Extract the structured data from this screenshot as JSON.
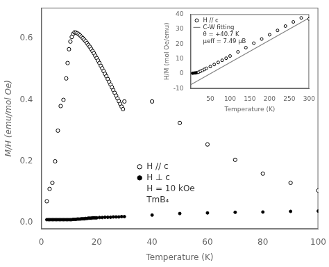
{
  "chart_data": [
    {
      "type": "scatter",
      "xlabel": "Temperature (K)",
      "ylabel": "M/H (emu/mol Oe)",
      "xlim": [
        0,
        100
      ],
      "ylim": [
        -0.02,
        0.7
      ],
      "xticks": [
        0,
        20,
        40,
        60,
        80,
        100
      ],
      "yticks": [
        {
          "value": 0,
          "label": "0.0"
        },
        0.2,
        0.4,
        0.6
      ],
      "grid": false,
      "legend": "lower center",
      "series": [
        {
          "name": "H // c",
          "color": "black",
          "marker": "circle_open",
          "x": [
            2,
            3,
            4,
            5,
            6,
            7,
            8,
            9.0,
            9.5,
            10.0,
            10.5,
            11.0,
            11.5,
            12.0,
            12.5,
            13.0,
            13.5,
            14.0,
            14.5,
            15.0,
            15.5,
            16.0,
            16.5,
            17.0,
            17.5,
            18.0,
            18.5,
            19.0,
            19.5,
            20.0,
            20.5,
            21.0,
            21.5,
            22.0,
            22.5,
            23.0,
            23.5,
            24.0,
            24.5,
            25.0,
            25.5,
            26.0,
            26.5,
            27.0,
            27.5,
            28.0,
            28.5,
            29.0,
            29.5,
            30.0,
            40,
            50,
            60,
            70,
            80,
            90,
            100
          ],
          "values": [
            0.07,
            0.11,
            0.13,
            0.2,
            0.3,
            0.38,
            0.4,
            0.47,
            0.52,
            0.565,
            0.59,
            0.605,
            0.615,
            0.62,
            0.619,
            0.617,
            0.614,
            0.61,
            0.606,
            0.601,
            0.596,
            0.591,
            0.585,
            0.579,
            0.573,
            0.566,
            0.559,
            0.552,
            0.544,
            0.536,
            0.528,
            0.52,
            0.511,
            0.503,
            0.494,
            0.485,
            0.477,
            0.468,
            0.459,
            0.45,
            0.441,
            0.432,
            0.423,
            0.414,
            0.405,
            0.396,
            0.387,
            0.378,
            0.37,
            0.395,
            0.395,
            0.325,
            0.255,
            0.205,
            0.16,
            0.13,
            0.105
          ]
        },
        {
          "name": "H ⊥ c",
          "color": "black",
          "marker": "circle",
          "x": [
            2,
            2.5,
            3,
            3.5,
            4,
            4.5,
            5,
            5.5,
            6,
            6.5,
            7,
            7.5,
            8,
            8.5,
            9,
            9.5,
            10,
            10.5,
            11,
            11.5,
            12,
            12.5,
            13,
            13.5,
            14,
            14.5,
            15,
            15.5,
            16,
            16.5,
            17,
            17.5,
            18,
            18.5,
            19,
            19.5,
            20,
            21,
            22,
            23,
            24,
            25,
            26,
            27,
            28,
            29,
            30,
            40,
            50,
            60,
            70,
            80,
            90,
            100
          ],
          "values": [
            0.01,
            0.01,
            0.01,
            0.01,
            0.01,
            0.01,
            0.01,
            0.01,
            0.01,
            0.01,
            0.01,
            0.01,
            0.01,
            0.01,
            0.01,
            0.01,
            0.01,
            0.01,
            0.01,
            0.011,
            0.011,
            0.011,
            0.012,
            0.012,
            0.012,
            0.013,
            0.013,
            0.013,
            0.014,
            0.014,
            0.015,
            0.015,
            0.015,
            0.016,
            0.016,
            0.016,
            0.016,
            0.017,
            0.017,
            0.018,
            0.018,
            0.018,
            0.019,
            0.019,
            0.019,
            0.02,
            0.02,
            0.025,
            0.03,
            0.032,
            0.034,
            0.035,
            0.037,
            0.038
          ]
        }
      ],
      "annotations": [
        "H = 10 kOe",
        "TmB₄"
      ]
    },
    {
      "type": "scatter",
      "xlabel": "Temperature (K)",
      "ylabel": "H/M (mol Oe/emu)",
      "xlim": [
        0,
        300
      ],
      "ylim": [
        -10,
        40
      ],
      "xticks": [
        50,
        100,
        150,
        200,
        250,
        300
      ],
      "yticks": [
        -10,
        0,
        10,
        20,
        30,
        40
      ],
      "grid": false,
      "legend": "upper left",
      "series": [
        {
          "name": "H // c",
          "color": "black",
          "marker": "circle_open",
          "x": [
            20,
            25,
            30,
            35,
            40,
            50,
            60,
            70,
            80,
            90,
            100,
            120,
            140,
            160,
            180,
            200,
            220,
            240,
            260,
            280,
            300
          ],
          "values": [
            1.0,
            1.6,
            2.2,
            2.9,
            3.6,
            4.8,
            6.2,
            7.6,
            9.0,
            10.4,
            11.9,
            14.7,
            17.5,
            20.5,
            23.3,
            26.2,
            29.1,
            32.0,
            34.8,
            37.5,
            36.8
          ]
        },
        {
          "color": "black",
          "marker": "circle",
          "x": [
            5,
            8,
            10,
            12,
            14,
            16
          ],
          "values": [
            0.3,
            0.4,
            0.5,
            0.5,
            0.6,
            0.7
          ]
        },
        {
          "name": "C-W fitting",
          "type": "line",
          "color": "gray",
          "x": [
            0,
            300
          ],
          "values": [
            -7.5,
            37.5
          ]
        }
      ],
      "annotations": [
        "θ = +40.7 K",
        "μeff = 7.49 μB"
      ]
    }
  ]
}
